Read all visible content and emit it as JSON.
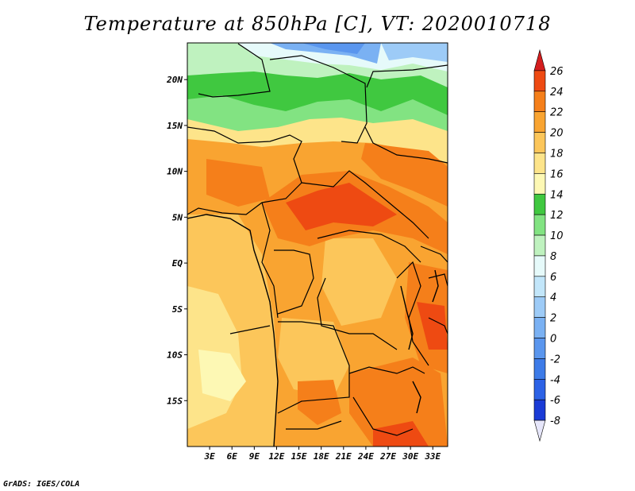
{
  "title": "Temperature at 850hPa [C], VT: 2020010718",
  "credit": "GrADS: IGES/COLA",
  "map": {
    "lon_range_deg": [
      0,
      35
    ],
    "lat_range_deg": [
      -20,
      24
    ],
    "lat_ticks": [
      {
        "value": 20,
        "label": "20N"
      },
      {
        "value": 15,
        "label": "15N"
      },
      {
        "value": 10,
        "label": "10N"
      },
      {
        "value": 5,
        "label": "5N"
      },
      {
        "value": 0,
        "label": "EQ"
      },
      {
        "value": -5,
        "label": "5S"
      },
      {
        "value": -10,
        "label": "10S"
      },
      {
        "value": -15,
        "label": "15S"
      }
    ],
    "lon_ticks": [
      {
        "value": 3,
        "label": "3E"
      },
      {
        "value": 6,
        "label": "6E"
      },
      {
        "value": 9,
        "label": "9E"
      },
      {
        "value": 12,
        "label": "12E"
      },
      {
        "value": 15,
        "label": "15E"
      },
      {
        "value": 18,
        "label": "18E"
      },
      {
        "value": 21,
        "label": "21E"
      },
      {
        "value": 24,
        "label": "24E"
      },
      {
        "value": 27,
        "label": "27E"
      },
      {
        "value": 30,
        "label": "30E"
      },
      {
        "value": 33,
        "label": "33E"
      }
    ]
  },
  "colorbar": {
    "ticks": [
      "-8",
      "-6",
      "-4",
      "-2",
      "0",
      "2",
      "4",
      "6",
      "8",
      "10",
      "12",
      "14",
      "16",
      "18",
      "20",
      "22",
      "24",
      "26"
    ],
    "colors": [
      "#110b6e",
      "#1a3bd6",
      "#2c62e6",
      "#3d7be8",
      "#5a96ee",
      "#7ab1f3",
      "#9dcbf7",
      "#c2e6fa",
      "#e6fafa",
      "#bff2bf",
      "#82e382",
      "#40c840",
      "#fdf8b4",
      "#fde48a",
      "#fcc65a",
      "#f9a431",
      "#f57f1a",
      "#ee4a12",
      "#d41e1e"
    ]
  }
}
